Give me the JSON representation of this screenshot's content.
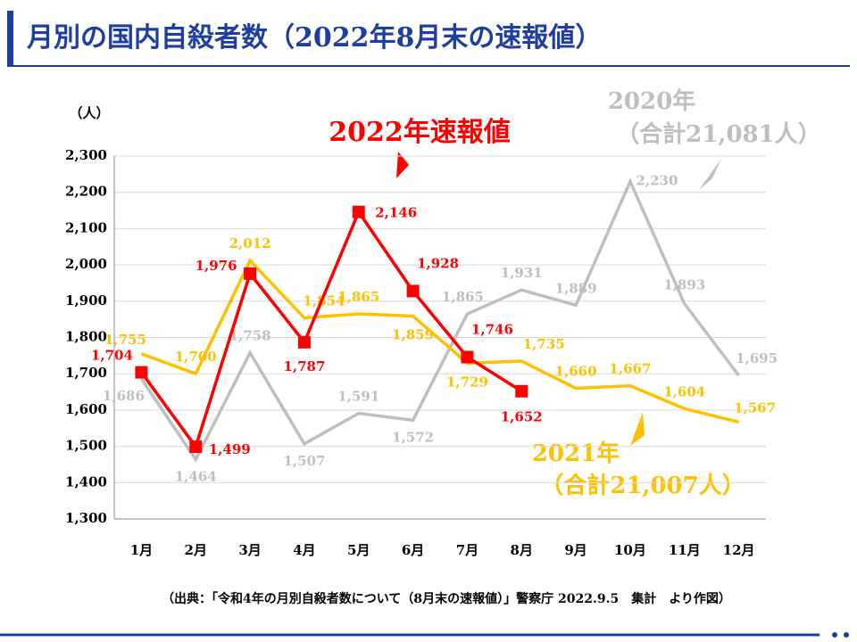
{
  "chart_data": {
    "type": "line",
    "title": "月別の国内自殺者数（2022年8月末の速報値）",
    "y_unit": "（人）",
    "categories": [
      "1月",
      "2月",
      "3月",
      "4月",
      "5月",
      "6月",
      "7月",
      "8月",
      "9月",
      "10月",
      "11月",
      "12月"
    ],
    "ylim": [
      1300,
      2300
    ],
    "yticks": [
      {
        "value": 1300,
        "label": "1,300"
      },
      {
        "value": 1400,
        "label": "1,400"
      },
      {
        "value": 1500,
        "label": "1,500"
      },
      {
        "value": 1600,
        "label": "1,600"
      },
      {
        "value": 1700,
        "label": "1,700"
      },
      {
        "value": 1800,
        "label": "1,800"
      },
      {
        "value": 1900,
        "label": "1,900"
      },
      {
        "value": 2000,
        "label": "2,000"
      },
      {
        "value": 2100,
        "label": "2,100"
      },
      {
        "value": 2200,
        "label": "2,200"
      },
      {
        "value": 2300,
        "label": "2,300"
      }
    ],
    "grid": true,
    "series": [
      {
        "name": "2020年",
        "total_label": "（合計21,081人）",
        "color": "#bfbfbf",
        "values": [
          1686,
          1464,
          1758,
          1507,
          1591,
          1572,
          1865,
          1931,
          1889,
          2230,
          1893,
          1695
        ],
        "value_labels": [
          "1,686",
          "1,464",
          "1,758",
          "1,507",
          "1,591",
          "1,572",
          "1,865",
          "1,931",
          "1,889",
          "2,230",
          "1,893",
          "1,695"
        ]
      },
      {
        "name": "2021年",
        "total_label": "（合計21,007人）",
        "color": "#ffc000",
        "values": [
          1755,
          1700,
          2012,
          1854,
          1865,
          1859,
          1729,
          1735,
          1660,
          1667,
          1604,
          1567
        ],
        "value_labels": [
          "1,755",
          "1,700",
          "2,012",
          "1,854",
          "1,865",
          "1,859",
          "1,729",
          "1,735",
          "1,660",
          "1,667",
          "1,604",
          "1,567"
        ]
      },
      {
        "name": "2022年速報値",
        "color": "#ff0000",
        "markers": true,
        "values": [
          1704,
          1499,
          1976,
          1787,
          2146,
          1928,
          1746,
          1652,
          null,
          null,
          null,
          null
        ],
        "value_labels": [
          "1,704",
          "1,499",
          "1,976",
          "1,787",
          "2,146",
          "1,928",
          "1,746",
          "1,652",
          null,
          null,
          null,
          null
        ]
      }
    ],
    "source": "（出典：「令和4年の月別自殺者数について（8月末の速報値）」警察庁 2022.9.5　集計　より作図）"
  }
}
